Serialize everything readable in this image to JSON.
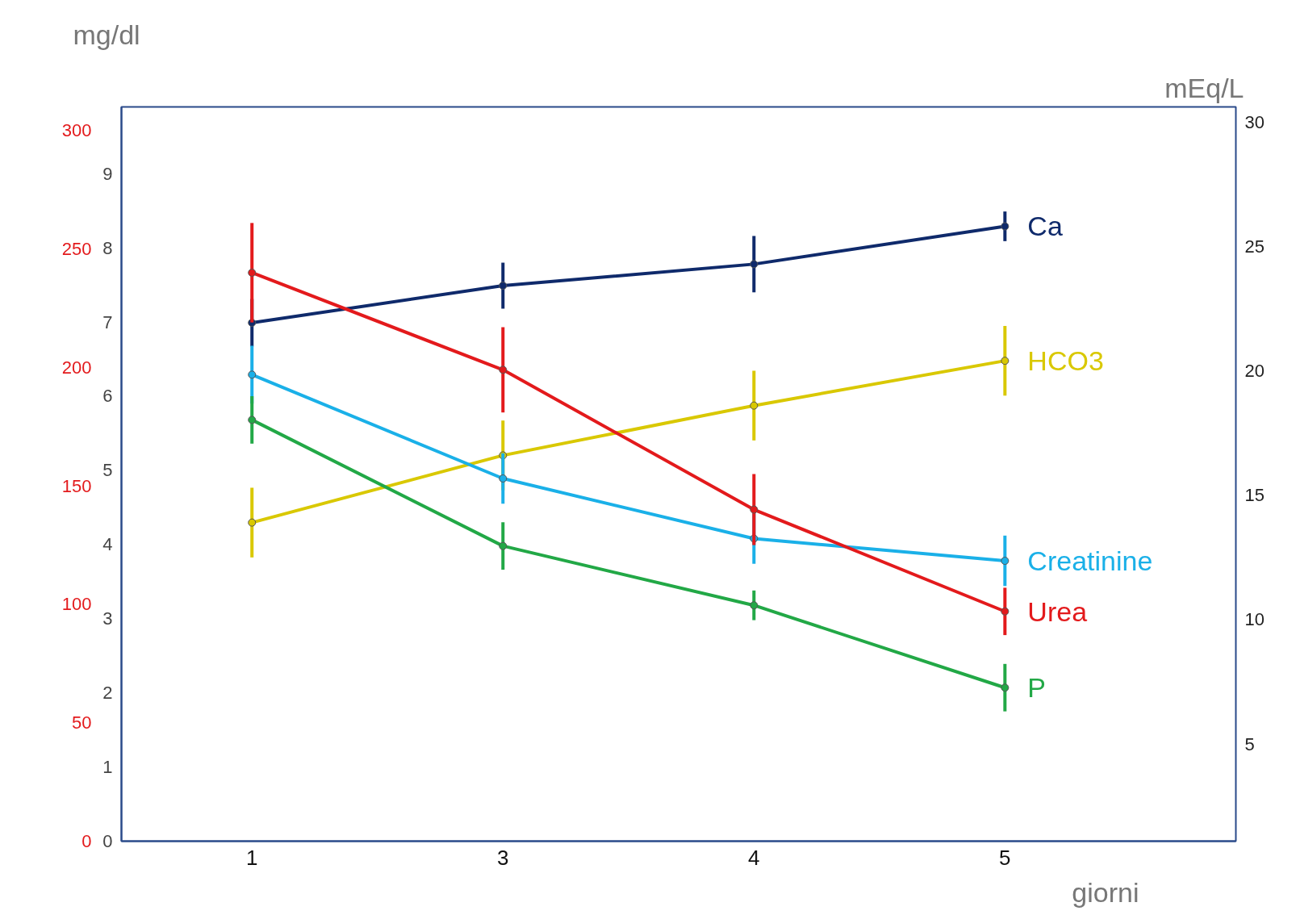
{
  "chart_data": {
    "type": "line",
    "xlabel": "giorni",
    "ylabel": "mg/dl",
    "y2label": "mEq/L",
    "categories": [
      "1",
      "3",
      "4",
      "5"
    ],
    "ylim": [
      0,
      9.9
    ],
    "yticks": [
      0,
      1,
      2,
      3,
      4,
      5,
      6,
      7,
      8,
      9
    ],
    "y3lim": [
      0,
      310
    ],
    "y3ticks": [
      0,
      50,
      100,
      150,
      200,
      250,
      300
    ],
    "y2lim": [
      1.1,
      30.6
    ],
    "y2ticks": [
      5,
      10,
      15,
      20,
      25,
      30
    ],
    "grid": false,
    "legend": false,
    "marker": "circle",
    "line_style": "solid",
    "series": [
      {
        "name": "Ca",
        "color": "#0f2a6b",
        "values": [
          6.99,
          7.49,
          7.78,
          8.29
        ],
        "errors": [
          0.32,
          0.31,
          0.38,
          0.2
        ]
      },
      {
        "name": "HCO3",
        "color": "#d9c800",
        "axis": "y2",
        "values": [
          13.9,
          16.6,
          18.6,
          20.4
        ],
        "errors": [
          1.4,
          1.4,
          1.4,
          1.4
        ]
      },
      {
        "name": "Creatinine",
        "color": "#1ab0e8",
        "values": [
          6.29,
          4.89,
          4.08,
          3.78
        ],
        "errors": [
          0.39,
          0.34,
          0.34,
          0.34
        ]
      },
      {
        "name": "Urea",
        "color": "#e31a1c",
        "axis": "y3",
        "values": [
          240,
          199,
          140,
          97
        ],
        "errors": [
          21,
          18,
          15,
          10
        ]
      },
      {
        "name": "P",
        "color": "#22a846",
        "values": [
          5.68,
          3.98,
          3.18,
          2.07
        ],
        "errors": [
          0.32,
          0.32,
          0.2,
          0.32
        ]
      }
    ]
  }
}
